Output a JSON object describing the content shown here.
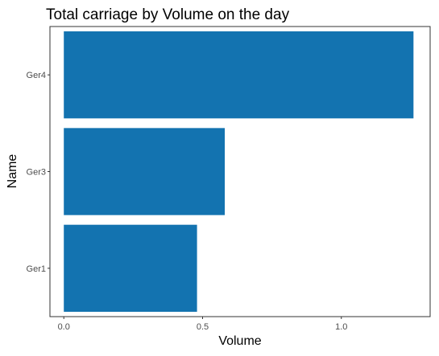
{
  "chart_data": {
    "type": "bar",
    "orientation": "horizontal",
    "title": "Total carriage by Volume on the day",
    "xlabel": "Volume",
    "ylabel": "Name",
    "categories": [
      "Ger1",
      "Ger3",
      "Ger4"
    ],
    "values": [
      0.48,
      0.58,
      1.26
    ],
    "xlim": [
      -0.05,
      1.32
    ],
    "xticks": [
      {
        "value": 0.0,
        "label": "0.0"
      },
      {
        "value": 0.5,
        "label": "0.5"
      },
      {
        "value": 1.0,
        "label": "1.0"
      }
    ],
    "grid": false,
    "legend": "none",
    "bar_color": "#1373B0",
    "panel_border_color": "#333333",
    "text_color": "#000000",
    "tick_label_color": "#4D4D4D"
  }
}
